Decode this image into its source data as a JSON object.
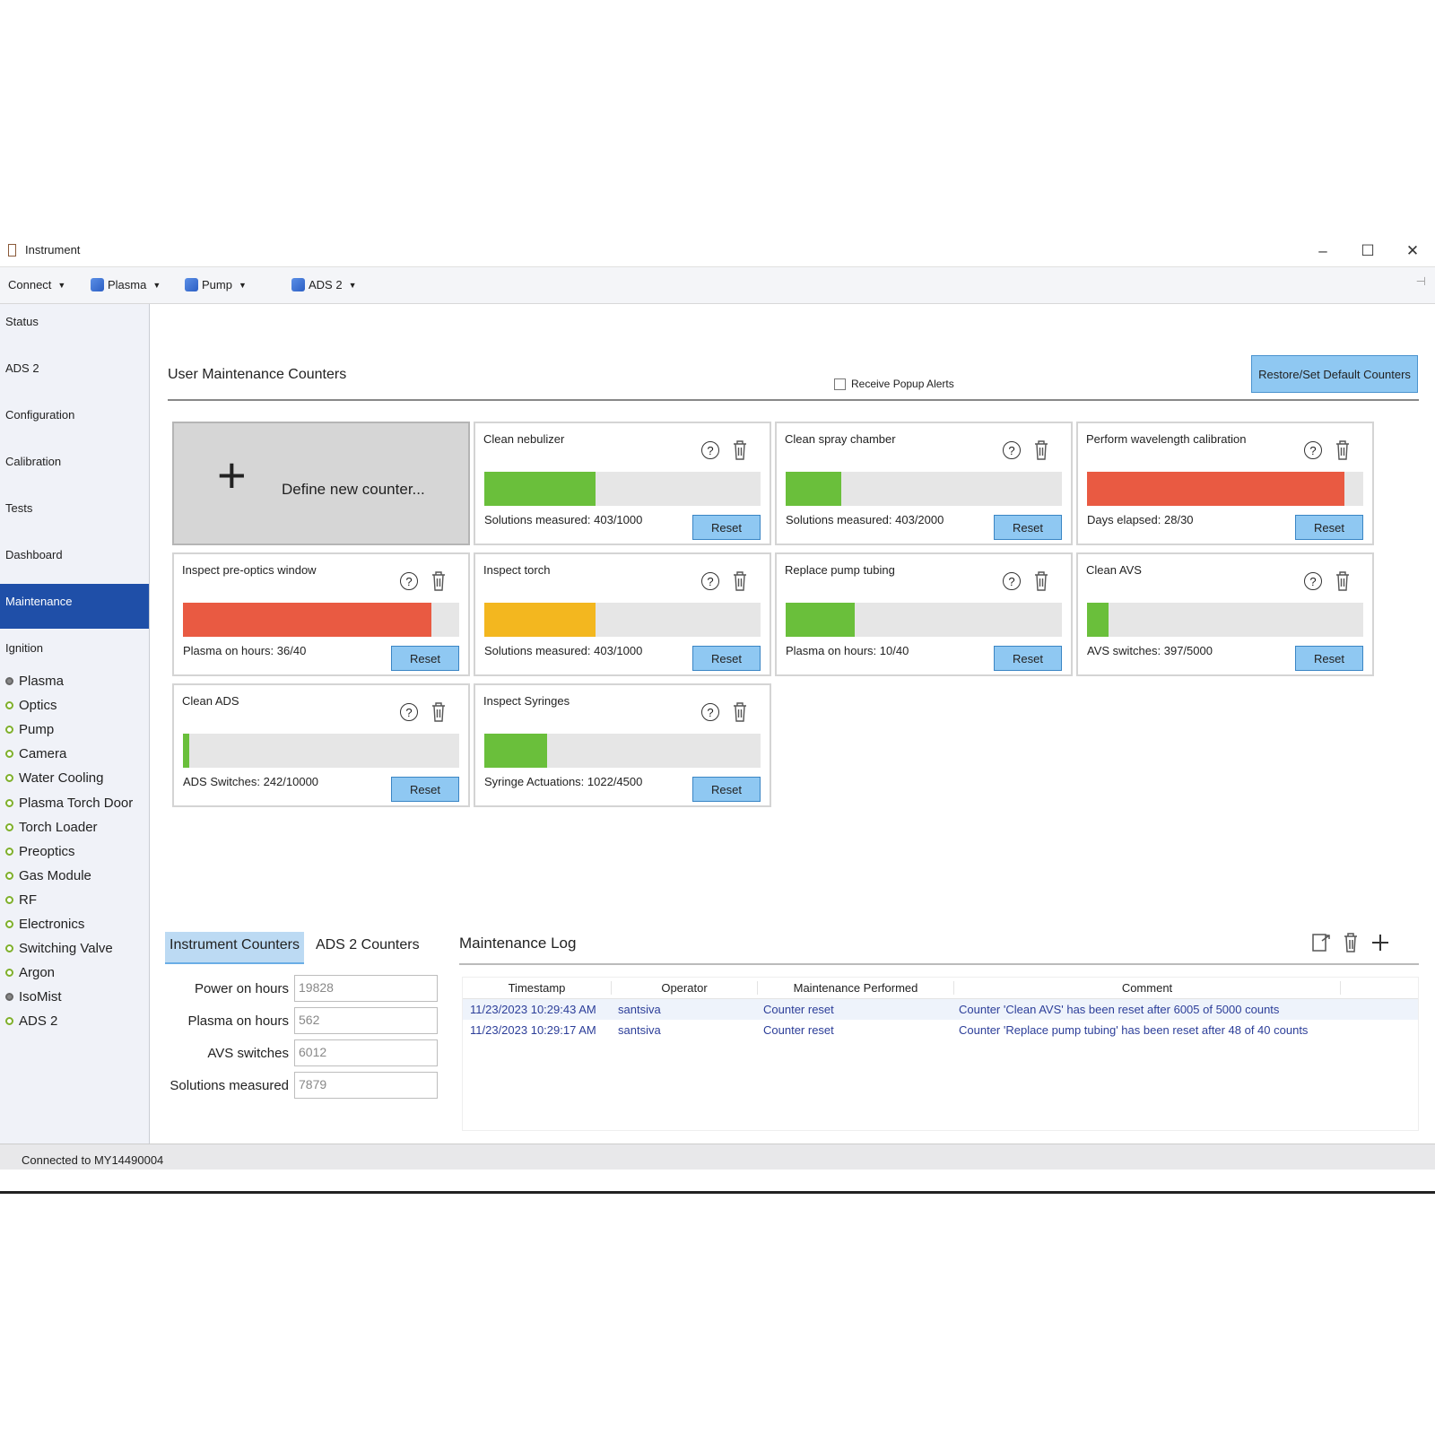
{
  "window": {
    "title": "Instrument",
    "minimize": "–",
    "maximize": "☐",
    "close": "✕"
  },
  "toolbar": {
    "connect": "Connect",
    "plasma": "Plasma",
    "pump": "Pump",
    "ads": "ADS 2",
    "pin": "⊣"
  },
  "sidebar": {
    "nav": [
      "Status",
      "ADS 2",
      "Configuration",
      "Calibration",
      "Tests",
      "Dashboard",
      "Maintenance",
      "Ignition"
    ],
    "active": "Maintenance",
    "subsystems": [
      {
        "label": "Plasma",
        "state": "grey"
      },
      {
        "label": "Optics",
        "state": "green"
      },
      {
        "label": "Pump",
        "state": "green"
      },
      {
        "label": "Camera",
        "state": "green"
      },
      {
        "label": "Water Cooling",
        "state": "green"
      },
      {
        "label": "Plasma Torch Door",
        "state": "green"
      },
      {
        "label": "Torch Loader",
        "state": "green"
      },
      {
        "label": "Preoptics",
        "state": "green"
      },
      {
        "label": "Gas Module",
        "state": "green"
      },
      {
        "label": "RF",
        "state": "green"
      },
      {
        "label": "Electronics",
        "state": "green"
      },
      {
        "label": "Switching Valve",
        "state": "green"
      },
      {
        "label": "Argon",
        "state": "green"
      },
      {
        "label": "IsoMist",
        "state": "grey"
      },
      {
        "label": "ADS 2",
        "state": "green"
      }
    ]
  },
  "main": {
    "title": "User Maintenance Counters",
    "popup_label": "Receive Popup Alerts",
    "restore_button": "Restore/Set Default Counters",
    "new_counter_label": "Define new counter...",
    "reset_label": "Reset",
    "help_glyph": "?",
    "colors": {
      "green": "#6abf3b",
      "red": "#e95a42",
      "yellow": "#f3b71f"
    },
    "counters": [
      {
        "title": "Clean nebulizer",
        "status": "Solutions measured: 403/1000",
        "progress": 0.403,
        "color": "green"
      },
      {
        "title": "Clean spray chamber",
        "status": "Solutions measured: 403/2000",
        "progress": 0.2015,
        "color": "green"
      },
      {
        "title": "Perform wavelength calibration",
        "status": "Days elapsed: 28/30",
        "progress": 0.933,
        "color": "red"
      },
      {
        "title": "Inspect pre-optics window",
        "status": "Plasma on hours: 36/40",
        "progress": 0.9,
        "color": "red"
      },
      {
        "title": "Inspect torch",
        "status": "Solutions measured: 403/1000",
        "progress": 0.403,
        "color": "yellow"
      },
      {
        "title": "Replace pump tubing",
        "status": "Plasma on hours: 10/40",
        "progress": 0.25,
        "color": "green"
      },
      {
        "title": "Clean AVS",
        "status": "AVS switches: 397/5000",
        "progress": 0.0794,
        "color": "green"
      },
      {
        "title": "Clean ADS",
        "status": "ADS Switches: 242/10000",
        "progress": 0.0242,
        "color": "green"
      },
      {
        "title": "Inspect Syringes",
        "status": "Syringe Actuations: 1022/4500",
        "progress": 0.227,
        "color": "green"
      }
    ]
  },
  "counters_tabs": {
    "instrument": "Instrument Counters",
    "ads": "ADS 2 Counters"
  },
  "instrument_counters": [
    {
      "label": "Power on hours",
      "value": "19828"
    },
    {
      "label": "Plasma on hours",
      "value": "562"
    },
    {
      "label": "AVS switches",
      "value": "6012"
    },
    {
      "label": "Solutions measured",
      "value": "7879"
    }
  ],
  "log": {
    "title": "Maintenance Log",
    "columns": [
      "Timestamp",
      "Operator",
      "Maintenance Performed",
      "Comment"
    ],
    "rows": [
      [
        "11/23/2023 10:29:43 AM",
        "santsiva",
        "Counter reset",
        "Counter 'Clean AVS' has been reset after 6005 of 5000 counts"
      ],
      [
        "11/23/2023 10:29:17 AM",
        "santsiva",
        "Counter reset",
        "Counter 'Replace pump tubing' has been reset after 48 of 40 counts"
      ]
    ]
  },
  "status_bar": "Connected to MY14490004"
}
